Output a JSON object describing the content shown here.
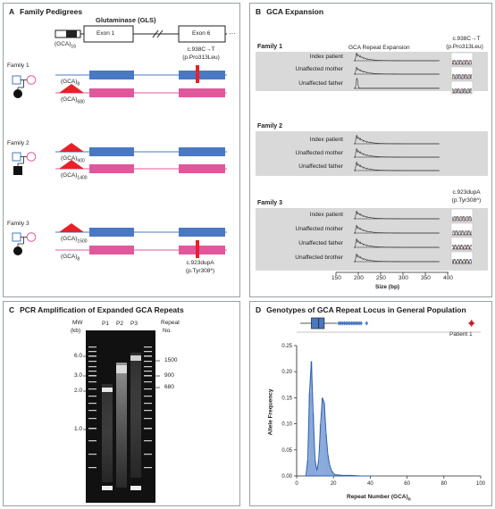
{
  "panelA": {
    "letter": "A",
    "title": "Family Pedigrees",
    "gene": "Glutaminase (GLS)",
    "exon1": "Exon 1",
    "exon6": "Exon 6",
    "ellipsis": "···",
    "ref_repeat": "(GCA)",
    "ref_repeat_sub": "16",
    "family1": {
      "label": "Family 1",
      "mutation": "c.938C→T",
      "protein": "(p.Pro313Leu)",
      "allele_blue": "(GCA)",
      "allele_blue_sub": "8",
      "allele_pink": "(GCA)",
      "allele_pink_sub": "680"
    },
    "family2": {
      "label": "Family 2",
      "allele_blue": "(GCA)",
      "allele_blue_sub": "900",
      "allele_pink": "(GCA)",
      "allele_pink_sub": "1400"
    },
    "family3": {
      "label": "Family 3",
      "mutation": "c.923dupA",
      "protein": "(p.Tyr308*)",
      "allele_blue": "(GCA)",
      "allele_blue_sub": "1500",
      "allele_pink": "(GCA)",
      "allele_pink_sub": "8"
    },
    "colors": {
      "blue": "#4a78c2",
      "pink": "#e0589c",
      "red": "#e8202a"
    }
  },
  "panelB": {
    "letter": "B",
    "title": "GCA Expansion",
    "column_header": "GCA Repeat Expansion",
    "family1": {
      "label": "Family 1",
      "mutation": "c.938C→T",
      "protein": "(p.Pro313Leu)",
      "rows": [
        "Index patient",
        "Unaffected mother",
        "Unaffected father"
      ]
    },
    "family2": {
      "label": "Family 2",
      "rows": [
        "Index patient",
        "Unaffected mother",
        "Unaffected father"
      ]
    },
    "family3": {
      "label": "Family 3",
      "mutation": "c.923dupA",
      "protein": "(p.Tyr308^)",
      "rows": [
        "Index patient",
        "Unaffected mother",
        "Unaffected father",
        "Unaffected brother"
      ]
    },
    "x_ticks": [
      "150",
      "200",
      "250",
      "300",
      "350",
      "400"
    ],
    "xlabel": "Size (bp)"
  },
  "panelC": {
    "letter": "C",
    "title": "PCR Amplification of Expanded GCA Repeats",
    "mw_label": "MW",
    "mw_unit": "(kb)",
    "lanes": [
      "P1",
      "P2",
      "P3"
    ],
    "repeat_label": "Repeat",
    "repeat_unit": "No.",
    "mw_ticks": [
      "6.0",
      "3.0",
      "2.0",
      "1.0"
    ],
    "repeat_ticks": [
      "1500",
      "900",
      "680"
    ]
  },
  "panelD": {
    "letter": "D",
    "title": "Genotypes of GCA Repeat Locus in General Population",
    "patient_label": "Patient 1",
    "ylabel": "Allele Frequency",
    "xlabel": "Repeat Number (GCA)",
    "xlabel_sub": "n"
  },
  "chart_data": {
    "type": "area",
    "title": "Genotypes of GCA Repeat Locus in General Population",
    "xlabel": "Repeat Number (GCA)n",
    "ylabel": "Allele Frequency",
    "xlim": [
      0,
      100
    ],
    "ylim": [
      0,
      0.25
    ],
    "x_ticks": [
      0,
      20,
      40,
      60,
      80,
      100
    ],
    "y_ticks": [
      0,
      0.05,
      0.1,
      0.15,
      0.2,
      0.25
    ],
    "series": [
      {
        "name": "",
        "x": [
          5,
          6,
          7,
          8,
          9,
          10,
          11,
          12,
          13,
          14,
          15,
          16,
          17,
          18,
          19,
          20,
          21,
          22,
          25,
          30,
          35,
          40
        ],
        "values": [
          0,
          0.03,
          0.16,
          0.22,
          0.12,
          0.03,
          0.01,
          0.03,
          0.1,
          0.15,
          0.14,
          0.08,
          0.04,
          0.02,
          0.01,
          0.005,
          0.002,
          0.002,
          0.001,
          0.001,
          0.0,
          0.0
        ]
      }
    ],
    "boxplot": {
      "q1": 8,
      "median": 12,
      "q3": 15,
      "whisker_low": 2,
      "whisker_high": 22,
      "outliers": [
        23,
        24,
        25,
        26,
        27,
        28,
        29,
        30,
        31,
        32,
        33,
        34,
        35,
        38
      ],
      "patient1": 95
    }
  }
}
